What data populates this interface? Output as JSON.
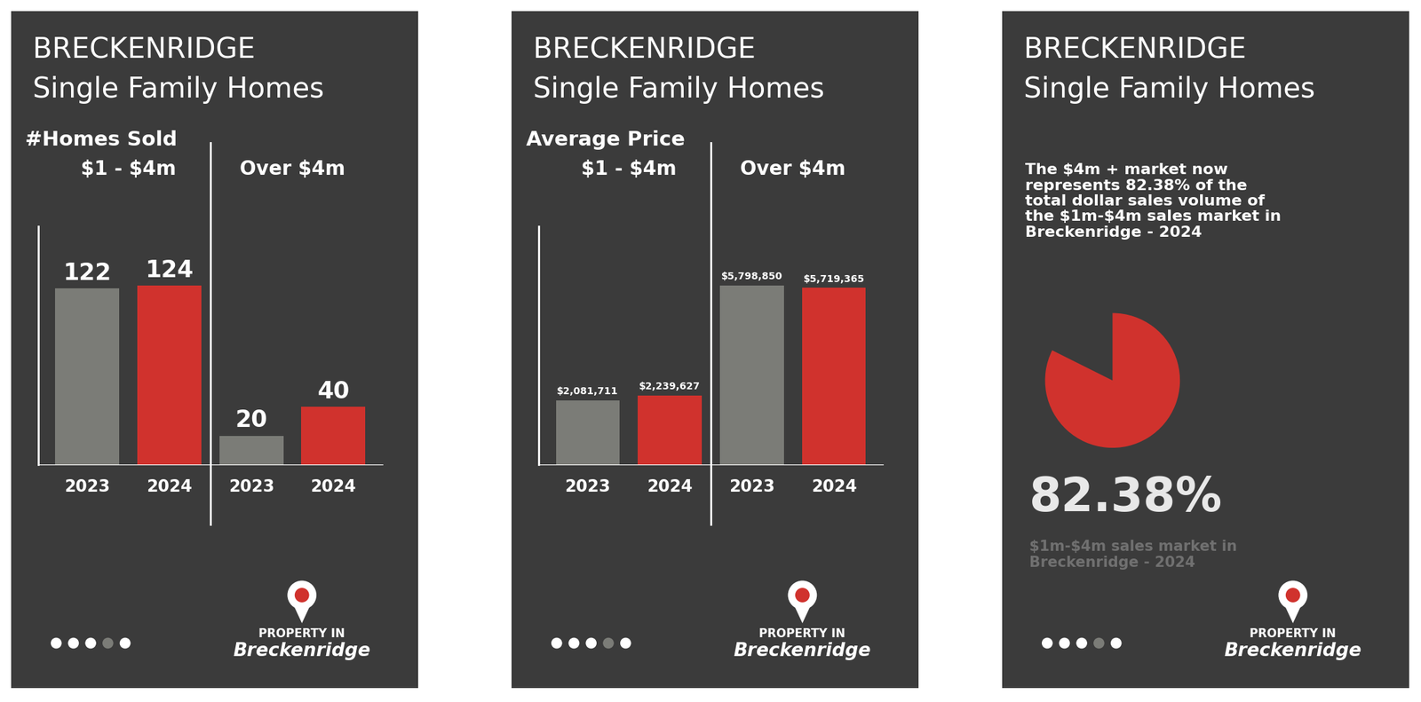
{
  "brand": {
    "line1": "PROPERTY IN",
    "line2": "Breckenridge"
  },
  "chart_data": [
    {
      "type": "bar",
      "title": "BRECKENRIDGE",
      "subtitle": "Single Family Homes",
      "annotations": [
        "#Homes Sold"
      ],
      "groups": [
        "$1 - $4m",
        "Over $4m"
      ],
      "categories": [
        "2023",
        "2024",
        "2023",
        "2024"
      ],
      "values": [
        122,
        124,
        20,
        40
      ],
      "colors": [
        "#7b7c77",
        "#d0322d",
        "#7b7c77",
        "#d0322d"
      ],
      "ylim": [
        0,
        165
      ],
      "data_labels": true,
      "tick_labels": "x"
    },
    {
      "type": "bar",
      "title": "BRECKENRIDGE",
      "subtitle": "Single Family Homes",
      "annotations": [
        "Average Price"
      ],
      "groups": [
        "$1 - $4m",
        "Over $4m"
      ],
      "categories": [
        "2023",
        "2024",
        "2023",
        "2024"
      ],
      "values": [
        2081711,
        2239627,
        5798850,
        5719365
      ],
      "value_labels": [
        "$2,081,711",
        "$2,239,627",
        "$5,798,850",
        "$5,719,365"
      ],
      "colors": [
        "#7b7c77",
        "#d0322d",
        "#7b7c77",
        "#d0322d"
      ],
      "ylim": [
        0,
        7700000
      ],
      "data_labels": true,
      "tick_labels": "x"
    },
    {
      "type": "pie",
      "title": "BRECKENRIDGE",
      "subtitle": "Single Family Homes",
      "annotations": [
        "The $4m + market now represents 82.38% of the total dollar sales volume of the $1m-$4m sales market in Breckenridge - 2024",
        "$1m-$4m sales market in Breckenridge - 2024"
      ],
      "values": [
        82.38,
        17.62
      ],
      "value_labels": [
        "82.38%",
        null
      ],
      "colors": [
        "#d0322d",
        "none"
      ],
      "data_labels": true,
      "tick_labels": false
    }
  ]
}
